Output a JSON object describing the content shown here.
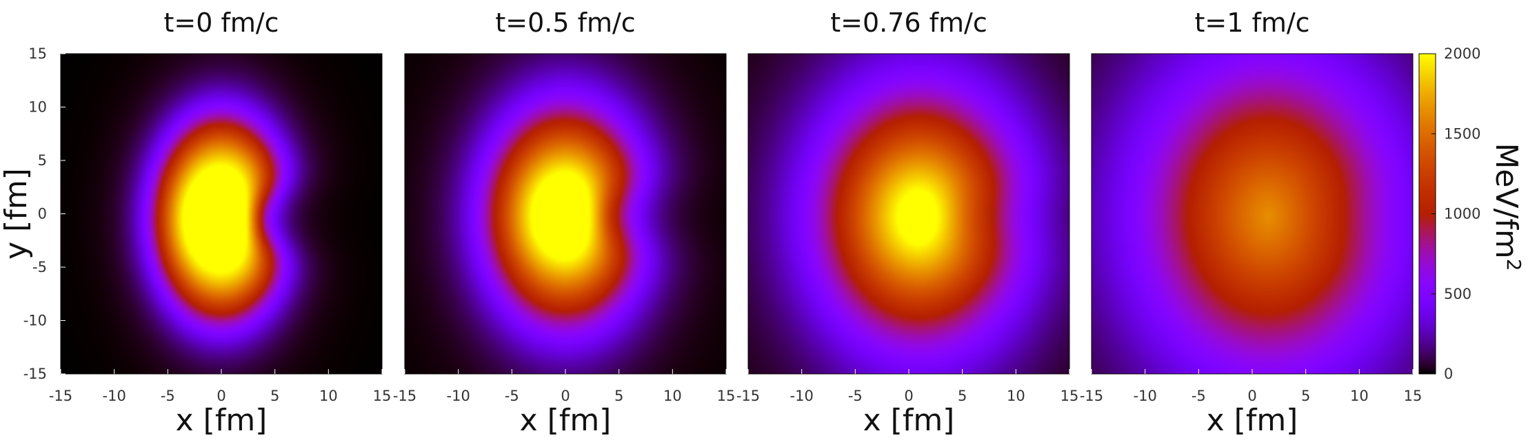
{
  "chart_data": {
    "type": "heatmap",
    "colorscale": {
      "name": "gnuplot",
      "min": 0,
      "max": 2000,
      "ticks": [
        "0",
        "500",
        "1000",
        "1500",
        "2000"
      ],
      "tick_values": [
        0,
        500,
        1000,
        1500,
        2000
      ],
      "unit_base": "MeV/fm",
      "unit_sup": "2"
    },
    "axes": {
      "x_label": "x [fm]",
      "y_label": "y [fm]",
      "xlim": [
        -15,
        15
      ],
      "ylim": [
        -15,
        15
      ],
      "x_ticks": [
        "-15",
        "-10",
        "-5",
        "0",
        "5",
        "10",
        "15"
      ],
      "y_ticks": [
        "-15",
        "-10",
        "-5",
        "0",
        "5",
        "10",
        "15"
      ]
    },
    "panels": [
      {
        "title": "t=0 fm/c",
        "time": 0,
        "peak": 2200,
        "cx": 0.0,
        "cy": -0.5,
        "rx": 5.6,
        "ry": 8.5,
        "dent": 0.45,
        "soft": 1.2,
        "halo_amp": 230,
        "halo_w": 5.0
      },
      {
        "title": "t=0.5 fm/c",
        "time": 0.5,
        "peak": 2150,
        "cx": 0.0,
        "cy": -0.2,
        "rx": 5.9,
        "ry": 8.3,
        "dent": 0.35,
        "soft": 1.9,
        "halo_amp": 330,
        "halo_w": 6.5
      },
      {
        "title": "t=0.76 fm/c",
        "time": 0.76,
        "peak": 2100,
        "cx": 1.0,
        "cy": -0.3,
        "rx": 6.0,
        "ry": 7.8,
        "dent": 0.18,
        "soft": 3.4,
        "halo_amp": 420,
        "halo_w": 9.0
      },
      {
        "title": "t=1 fm/c",
        "time": 1,
        "peak": 1530,
        "cx": 1.5,
        "cy": -0.2,
        "rx": 6.5,
        "ry": 8.6,
        "dent": 0.08,
        "soft": 4.8,
        "halo_amp": 430,
        "halo_w": 13.0
      }
    ]
  }
}
